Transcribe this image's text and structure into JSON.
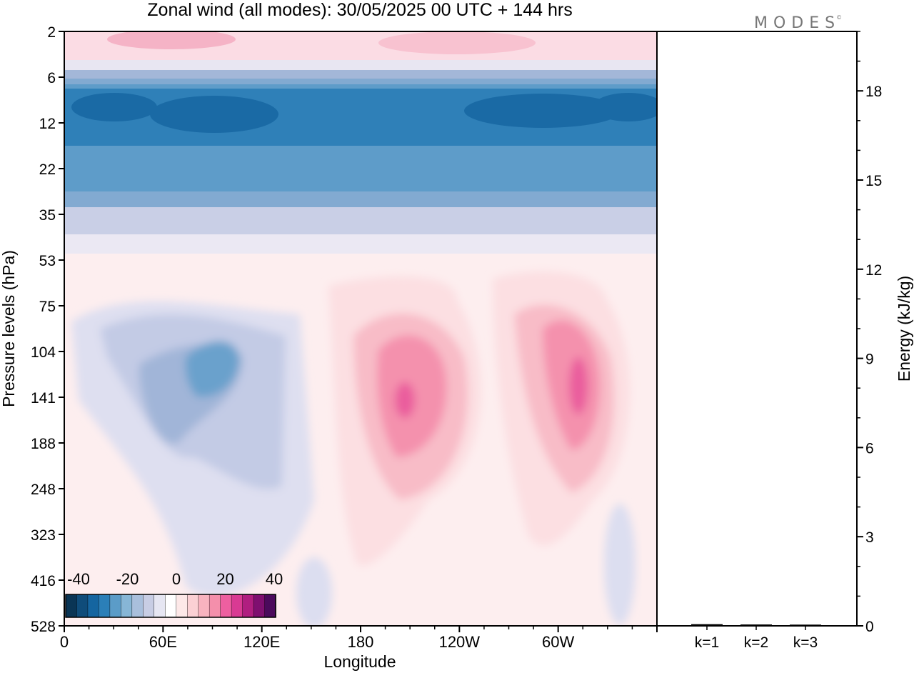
{
  "title": "Zonal wind (all modes):  30/05/2025  00 UTC  + 144 hrs",
  "logo": "MODES",
  "chart_data": [
    {
      "type": "heatmap",
      "title": "Zonal wind (all modes):  30/05/2025  00 UTC  + 144 hrs",
      "xlabel": "Longitude",
      "ylabel": "Pressure levels (hPa)",
      "x_ticks": [
        "0",
        "60E",
        "120E",
        "180",
        "120W",
        "60W"
      ],
      "x_tick_degrees": [
        0,
        60,
        120,
        180,
        240,
        300
      ],
      "xlim": [
        0,
        360
      ],
      "y_ticks": [
        "2",
        "6",
        "12",
        "22",
        "35",
        "53",
        "75",
        "104",
        "141",
        "188",
        "248",
        "323",
        "416",
        "528"
      ],
      "colorbar": {
        "ticks": [
          "-40",
          "-20",
          "0",
          "20",
          "40"
        ],
        "colors": [
          "#0a3555",
          "#0f4c7a",
          "#1565a0",
          "#2b7fb8",
          "#5b9cc8",
          "#87b6d6",
          "#a9bfdc",
          "#c8cde4",
          "#e6e6f2",
          "#ffffff",
          "#fde8e8",
          "#fbd0d4",
          "#f8b3bf",
          "#f48fab",
          "#ee5fa0",
          "#d93a93",
          "#b01e80",
          "#7f0f70",
          "#4b0a5c"
        ]
      },
      "features": [
        {
          "name": "stratospheric easterly band",
          "level_range": [
            "6",
            "35"
          ],
          "peak_value": -35
        },
        {
          "name": "westerly core near 160W",
          "longitude": 199,
          "level": "141",
          "peak_value": 25
        },
        {
          "name": "westerly core near 70W",
          "longitude": 290,
          "level": "141",
          "peak_value": 25
        },
        {
          "name": "easterly region near 80E",
          "longitude": 82,
          "level": "120",
          "peak_value": -20
        }
      ]
    },
    {
      "type": "bar",
      "categories": [
        "k=1",
        "k=2",
        "k=3"
      ],
      "values": [
        0.02,
        0.01,
        0.005
      ],
      "ylabel": "Energy (kJ/kg)",
      "y_ticks": [
        "0",
        "3",
        "6",
        "9",
        "12",
        "15",
        "18"
      ],
      "ylim": [
        0,
        20
      ]
    }
  ]
}
